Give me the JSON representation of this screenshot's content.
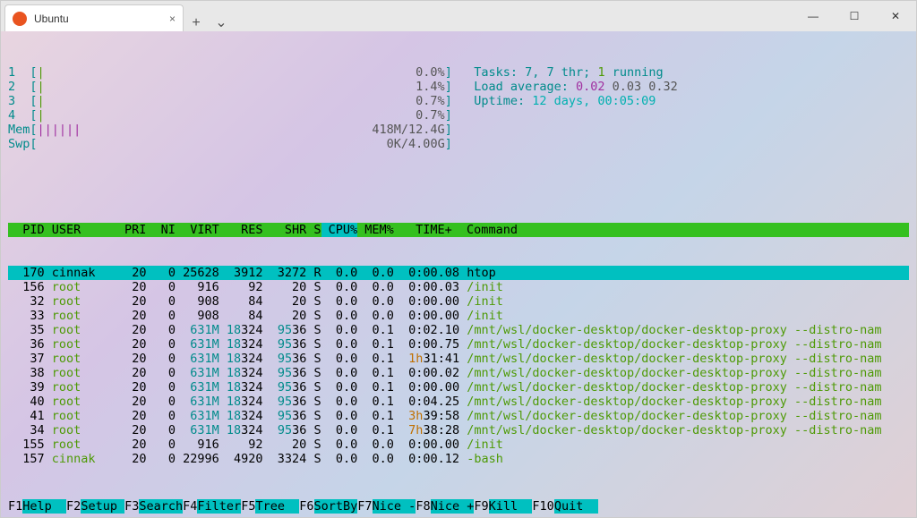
{
  "window": {
    "tab_title": "Ubuntu",
    "tab_icon": "ubuntu-icon",
    "tab_close": "×",
    "new_tab": "+",
    "dropdown": "⌄",
    "min": "—",
    "max": "☐",
    "close": "✕"
  },
  "colors": {
    "cyan": "#008b8b",
    "green": "#4e9a06",
    "red": "#cc0000",
    "magenta": "#a030a0",
    "gray": "#555555",
    "header_bg": "#35c020",
    "highlight_bg": "#00c0c0",
    "orange": "#c07000"
  },
  "cpu_bars": [
    {
      "n": "1",
      "bar": "|",
      "pct": "0.0%"
    },
    {
      "n": "2",
      "bar": "|",
      "pct": "1.4%"
    },
    {
      "n": "3",
      "bar": "|",
      "pct": "0.7%"
    },
    {
      "n": "4",
      "bar": "|",
      "pct": "0.7%"
    }
  ],
  "mem": {
    "label": "Mem",
    "bar": "||||||",
    "value": "418M/12.4G"
  },
  "swp": {
    "label": "Swp",
    "bar": "",
    "value": "0K/4.00G"
  },
  "summary": {
    "tasks_label": "Tasks: ",
    "tasks_value": "7",
    "tasks_sep": ", ",
    "thr_value": "7",
    "thr_label": " thr; ",
    "running_value": "1",
    "running_label": " running",
    "load_label": "Load average: ",
    "load1": "0.02",
    "load2": " 0.03",
    "load3": " 0.32",
    "uptime_label": "Uptime: ",
    "uptime_value": "12 days, 00:05:09"
  },
  "header_cols": {
    "pid": " PID",
    "user": " USER     ",
    "pri": " PRI",
    "ni": "  NI",
    "virt": "  VIRT",
    "res": "   RES",
    "shr": "   SHR",
    "s": " S",
    "cpu": " CPU%",
    "mem": " MEM%",
    "time": "   TIME+ ",
    "cmd": " Command"
  },
  "processes": [
    {
      "pid": "170",
      "user": "cinnak",
      "pri": "20",
      "ni": "0",
      "virt": "25628",
      "res": "3912",
      "shr": "3272",
      "s": "R",
      "cpu": "0.0",
      "mem": "0.0",
      "time": "0:00.08",
      "tpfx": "",
      "cmd": "htop",
      "sel": true,
      "big": false
    },
    {
      "pid": "156",
      "user": "root",
      "pri": "20",
      "ni": "0",
      "virt": "916",
      "res": "92",
      "shr": "20",
      "s": "S",
      "cpu": "0.0",
      "mem": "0.0",
      "time": "0:00.03",
      "tpfx": "",
      "cmd": "/init",
      "big": false
    },
    {
      "pid": "32",
      "user": "root",
      "pri": "20",
      "ni": "0",
      "virt": "908",
      "res": "84",
      "shr": "20",
      "s": "S",
      "cpu": "0.0",
      "mem": "0.0",
      "time": "0:00.00",
      "tpfx": "",
      "cmd": "/init",
      "big": false
    },
    {
      "pid": "33",
      "user": "root",
      "pri": "20",
      "ni": "0",
      "virt": "908",
      "res": "84",
      "shr": "20",
      "s": "S",
      "cpu": "0.0",
      "mem": "0.0",
      "time": "0:00.00",
      "tpfx": "",
      "cmd": "/init",
      "big": false
    },
    {
      "pid": "35",
      "user": "root",
      "pri": "20",
      "ni": "0",
      "virt": "631M",
      "res": "18324",
      "shr": "9536",
      "s": "S",
      "cpu": "0.0",
      "mem": "0.1",
      "time": "0:02.10",
      "tpfx": "",
      "cmd": "/mnt/wsl/docker-desktop/docker-desktop-proxy --distro-nam",
      "big": true
    },
    {
      "pid": "36",
      "user": "root",
      "pri": "20",
      "ni": "0",
      "virt": "631M",
      "res": "18324",
      "shr": "9536",
      "s": "S",
      "cpu": "0.0",
      "mem": "0.1",
      "time": "0:00.75",
      "tpfx": "",
      "cmd": "/mnt/wsl/docker-desktop/docker-desktop-proxy --distro-nam",
      "big": true
    },
    {
      "pid": "37",
      "user": "root",
      "pri": "20",
      "ni": "0",
      "virt": "631M",
      "res": "18324",
      "shr": "9536",
      "s": "S",
      "cpu": "0.0",
      "mem": "0.1",
      "time": "31:41",
      "tpfx": "1h",
      "cmd": "/mnt/wsl/docker-desktop/docker-desktop-proxy --distro-nam",
      "big": true
    },
    {
      "pid": "38",
      "user": "root",
      "pri": "20",
      "ni": "0",
      "virt": "631M",
      "res": "18324",
      "shr": "9536",
      "s": "S",
      "cpu": "0.0",
      "mem": "0.1",
      "time": "0:00.02",
      "tpfx": "",
      "cmd": "/mnt/wsl/docker-desktop/docker-desktop-proxy --distro-nam",
      "big": true
    },
    {
      "pid": "39",
      "user": "root",
      "pri": "20",
      "ni": "0",
      "virt": "631M",
      "res": "18324",
      "shr": "9536",
      "s": "S",
      "cpu": "0.0",
      "mem": "0.1",
      "time": "0:00.00",
      "tpfx": "",
      "cmd": "/mnt/wsl/docker-desktop/docker-desktop-proxy --distro-nam",
      "big": true
    },
    {
      "pid": "40",
      "user": "root",
      "pri": "20",
      "ni": "0",
      "virt": "631M",
      "res": "18324",
      "shr": "9536",
      "s": "S",
      "cpu": "0.0",
      "mem": "0.1",
      "time": "0:04.25",
      "tpfx": "",
      "cmd": "/mnt/wsl/docker-desktop/docker-desktop-proxy --distro-nam",
      "big": true
    },
    {
      "pid": "41",
      "user": "root",
      "pri": "20",
      "ni": "0",
      "virt": "631M",
      "res": "18324",
      "shr": "9536",
      "s": "S",
      "cpu": "0.0",
      "mem": "0.1",
      "time": "39:58",
      "tpfx": "3h",
      "cmd": "/mnt/wsl/docker-desktop/docker-desktop-proxy --distro-nam",
      "big": true
    },
    {
      "pid": "34",
      "user": "root",
      "pri": "20",
      "ni": "0",
      "virt": "631M",
      "res": "18324",
      "shr": "9536",
      "s": "S",
      "cpu": "0.0",
      "mem": "0.1",
      "time": "38:28",
      "tpfx": "7h",
      "cmd": "/mnt/wsl/docker-desktop/docker-desktop-proxy --distro-nam",
      "big": true
    },
    {
      "pid": "155",
      "user": "root",
      "pri": "20",
      "ni": "0",
      "virt": "916",
      "res": "92",
      "shr": "20",
      "s": "S",
      "cpu": "0.0",
      "mem": "0.0",
      "time": "0:00.00",
      "tpfx": "",
      "cmd": "/init",
      "big": false
    },
    {
      "pid": "157",
      "user": "cinnak",
      "pri": "20",
      "ni": "0",
      "virt": "22996",
      "res": "4920",
      "shr": "3324",
      "s": "S",
      "cpu": "0.0",
      "mem": "0.0",
      "time": "0:00.12",
      "tpfx": "",
      "cmd": "-bash",
      "big": false
    }
  ],
  "footer": [
    {
      "key": "F1",
      "label": "Help  "
    },
    {
      "key": "F2",
      "label": "Setup "
    },
    {
      "key": "F3",
      "label": "Search"
    },
    {
      "key": "F4",
      "label": "Filter"
    },
    {
      "key": "F5",
      "label": "Tree  "
    },
    {
      "key": "F6",
      "label": "SortBy"
    },
    {
      "key": "F7",
      "label": "Nice -"
    },
    {
      "key": "F8",
      "label": "Nice +"
    },
    {
      "key": "F9",
      "label": "Kill  "
    },
    {
      "key": "F10",
      "label": "Quit  "
    }
  ]
}
